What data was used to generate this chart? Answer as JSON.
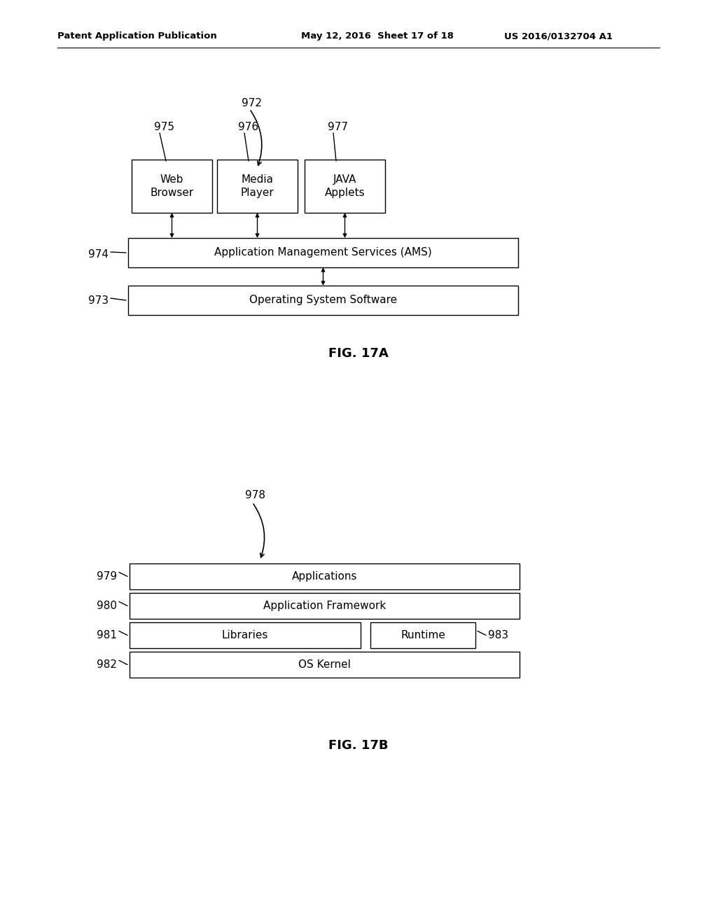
{
  "bg_color": "#ffffff",
  "header_left": "Patent Application Publication",
  "header_mid": "May 12, 2016  Sheet 17 of 18",
  "header_right": "US 2016/0132704 A1",
  "fig17a": {
    "caption": "FIG. 17A",
    "label_972": "972",
    "label_975": "975",
    "label_976": "976",
    "label_977": "977",
    "label_974": "974",
    "label_973": "973",
    "box_web_browser": "Web\nBrowser",
    "box_media_player": "Media\nPlayer",
    "box_java_applets": "JAVA\nApplets",
    "box_ams": "Application Management Services (AMS)",
    "box_os": "Operating System Software"
  },
  "fig17b": {
    "caption": "FIG. 17B",
    "label_978": "978",
    "label_979": "979",
    "label_980": "980",
    "label_981": "981",
    "label_982": "982",
    "label_983": "983",
    "box_applications": "Applications",
    "box_app_framework": "Application Framework",
    "box_libraries": "Libraries",
    "box_runtime": "Runtime",
    "box_os_kernel": "OS Kernel"
  }
}
